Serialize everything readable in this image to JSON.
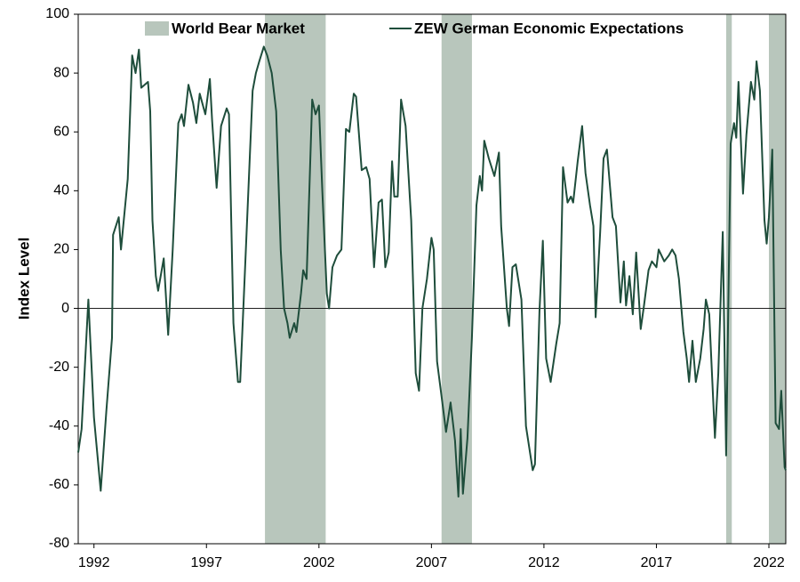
{
  "chart_data": {
    "type": "line",
    "ylabel": "Index Level",
    "xlim": [
      1991.3,
      2022.75
    ],
    "xticks": [
      1992,
      1997,
      2002,
      2007,
      2012,
      2017,
      2022
    ],
    "ylim": [
      -80,
      100
    ],
    "yticks": [
      -80,
      -60,
      -40,
      -20,
      0,
      20,
      40,
      60,
      80,
      100
    ],
    "zero_line": true,
    "legend": "top",
    "bands": {
      "name": "World Bear Market",
      "color": "#b8c6bc",
      "ranges": [
        [
          1999.6,
          2002.3
        ],
        [
          2007.45,
          2008.8
        ],
        [
          2020.1,
          2020.35
        ],
        [
          2022.0,
          2022.75
        ]
      ]
    },
    "x": [
      1991.3,
      1991.45,
      1991.75,
      1992.0,
      1992.3,
      1992.55,
      1992.8,
      1992.85,
      1993.1,
      1993.2,
      1993.5,
      1993.7,
      1993.85,
      1994.0,
      1994.1,
      1994.4,
      1994.5,
      1994.6,
      1994.75,
      1994.85,
      1995.1,
      1995.3,
      1995.5,
      1995.75,
      1995.9,
      1996.0,
      1996.2,
      1996.4,
      1996.55,
      1996.7,
      1996.95,
      1997.15,
      1997.25,
      1997.45,
      1997.65,
      1997.9,
      1998.0,
      1998.2,
      1998.4,
      1998.5,
      1998.75,
      1999.05,
      1999.2,
      1999.35,
      1999.55,
      1999.7,
      1999.9,
      2000.1,
      2000.3,
      2000.45,
      2000.6,
      2000.7,
      2000.9,
      2001.0,
      2001.2,
      2001.3,
      2001.45,
      2001.7,
      2001.85,
      2002.0,
      2002.15,
      2002.35,
      2002.45,
      2002.6,
      2002.8,
      2003.0,
      2003.2,
      2003.35,
      2003.55,
      2003.65,
      2003.9,
      2004.1,
      2004.25,
      2004.45,
      2004.65,
      2004.8,
      2004.95,
      2005.1,
      2005.25,
      2005.35,
      2005.5,
      2005.65,
      2005.85,
      2006.1,
      2006.3,
      2006.45,
      2006.6,
      2006.8,
      2007.0,
      2007.1,
      2007.25,
      2007.45,
      2007.65,
      2007.85,
      2008.05,
      2008.2,
      2008.3,
      2008.4,
      2008.6,
      2008.8,
      2009.0,
      2009.15,
      2009.25,
      2009.35,
      2009.55,
      2009.8,
      2010.0,
      2010.1,
      2010.35,
      2010.45,
      2010.6,
      2010.75,
      2011.0,
      2011.2,
      2011.5,
      2011.6,
      2011.8,
      2011.95,
      2012.1,
      2012.3,
      2012.55,
      2012.7,
      2012.85,
      2013.05,
      2013.2,
      2013.3,
      2013.5,
      2013.7,
      2013.85,
      2014.05,
      2014.2,
      2014.3,
      2014.5,
      2014.65,
      2014.8,
      2015.05,
      2015.2,
      2015.4,
      2015.55,
      2015.65,
      2015.8,
      2015.95,
      2016.1,
      2016.3,
      2016.45,
      2016.65,
      2016.8,
      2017.0,
      2017.1,
      2017.35,
      2017.55,
      2017.7,
      2017.85,
      2018.0,
      2018.2,
      2018.35,
      2018.45,
      2018.6,
      2018.75,
      2018.95,
      2019.1,
      2019.2,
      2019.35,
      2019.6,
      2019.75,
      2019.95,
      2020.1,
      2020.3,
      2020.45,
      2020.55,
      2020.65,
      2020.85,
      2021.0,
      2021.2,
      2021.35,
      2021.45,
      2021.6,
      2021.8,
      2021.9,
      2022.0,
      2022.15,
      2022.3,
      2022.45,
      2022.55,
      2022.7,
      2022.75
    ],
    "series": [
      {
        "name": "ZEW German Economic Expectations",
        "color": "#1e4d3b",
        "values": [
          -49,
          -41,
          3,
          -37,
          -62,
          -35,
          -10,
          25,
          31,
          20,
          44,
          86,
          80,
          88,
          75,
          77,
          67,
          30,
          11,
          6,
          17,
          -9,
          20,
          63,
          66,
          62,
          76,
          70,
          63,
          73,
          66,
          78,
          64,
          41,
          62,
          68,
          66,
          -5,
          -25,
          -25,
          20,
          74,
          80,
          84,
          89,
          86,
          80,
          67,
          20,
          0,
          -5,
          -10,
          -5,
          -8,
          5,
          13,
          10,
          71,
          66,
          69,
          40,
          5,
          0,
          14,
          18,
          20,
          61,
          60,
          73,
          72,
          47,
          48,
          44,
          14,
          36,
          37,
          14,
          19,
          50,
          38,
          38,
          71,
          62,
          30,
          -22,
          -28,
          0,
          10,
          24,
          20,
          -18,
          -30,
          -42,
          -32,
          -45,
          -64,
          -41,
          -63,
          -44,
          -10,
          35,
          45,
          40,
          57,
          51,
          45,
          53,
          28,
          0,
          -6,
          14,
          15,
          3,
          -40,
          -55,
          -53,
          -1,
          23,
          -17,
          -25,
          -12,
          -5,
          48,
          36,
          38,
          36,
          50,
          62,
          46,
          35,
          28,
          -3,
          26,
          51,
          54,
          31,
          28,
          2,
          16,
          1,
          11,
          -2,
          19,
          -7,
          1,
          13,
          16,
          14,
          20,
          16,
          18,
          20,
          18,
          10,
          -8,
          -17,
          -25,
          -11,
          -25,
          -17,
          -7,
          3,
          -2,
          -44,
          -22,
          26,
          -50,
          56,
          63,
          58,
          77,
          39,
          59,
          77,
          71,
          84,
          74,
          30,
          22,
          31,
          54,
          -39,
          -41,
          -28,
          -54,
          -55
        ]
      }
    ]
  }
}
